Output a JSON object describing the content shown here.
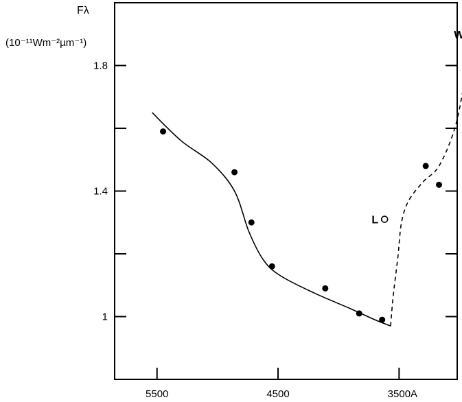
{
  "chart_data": {
    "type": "scatter",
    "title": "",
    "xlabel": "A",
    "ylabel": "Fλ",
    "ylabel_units": "(10⁻¹¹Wm⁻²µm⁻¹)",
    "xlim": [
      5850,
      3020
    ],
    "ylim": [
      0.8,
      2.0
    ],
    "x_reversed": true,
    "x_ticks": [
      5500,
      4500,
      3500
    ],
    "x_tick_labels": [
      "5500",
      "4500",
      "3500"
    ],
    "y_ticks": [
      1.0,
      1.4,
      1.8
    ],
    "y_tick_labels": [
      "1",
      "1.4",
      "1.8"
    ],
    "y_minor_ticks": [
      1.2,
      1.6
    ],
    "grid": false,
    "series": [
      {
        "marker": "filled-circle",
        "x": [
          5450,
          4860,
          4720,
          4550,
          4110,
          3830,
          3640,
          3280,
          3170
        ],
        "y": [
          1.59,
          1.46,
          1.3,
          1.16,
          1.09,
          1.01,
          0.99,
          1.48,
          1.42
        ]
      },
      {
        "marker": "open-circle",
        "x": [
          3620,
          2910
        ],
        "y": [
          1.31,
          1.9
        ],
        "labels": [
          "L",
          "W"
        ]
      },
      {
        "line": "solid",
        "x": [
          5540,
          5300,
          5050,
          4860,
          4740,
          4620,
          4480,
          4200,
          3900,
          3700,
          3570
        ],
        "y": [
          1.65,
          1.56,
          1.49,
          1.4,
          1.27,
          1.18,
          1.13,
          1.075,
          1.025,
          0.99,
          0.97
        ]
      },
      {
        "line": "dashed",
        "x": [
          3570,
          3550,
          3510,
          3480,
          3420,
          3300,
          3170,
          3040,
          2960,
          2910
        ],
        "y": [
          0.97,
          1.06,
          1.19,
          1.3,
          1.37,
          1.43,
          1.48,
          1.6,
          1.75,
          1.88
        ]
      }
    ]
  }
}
